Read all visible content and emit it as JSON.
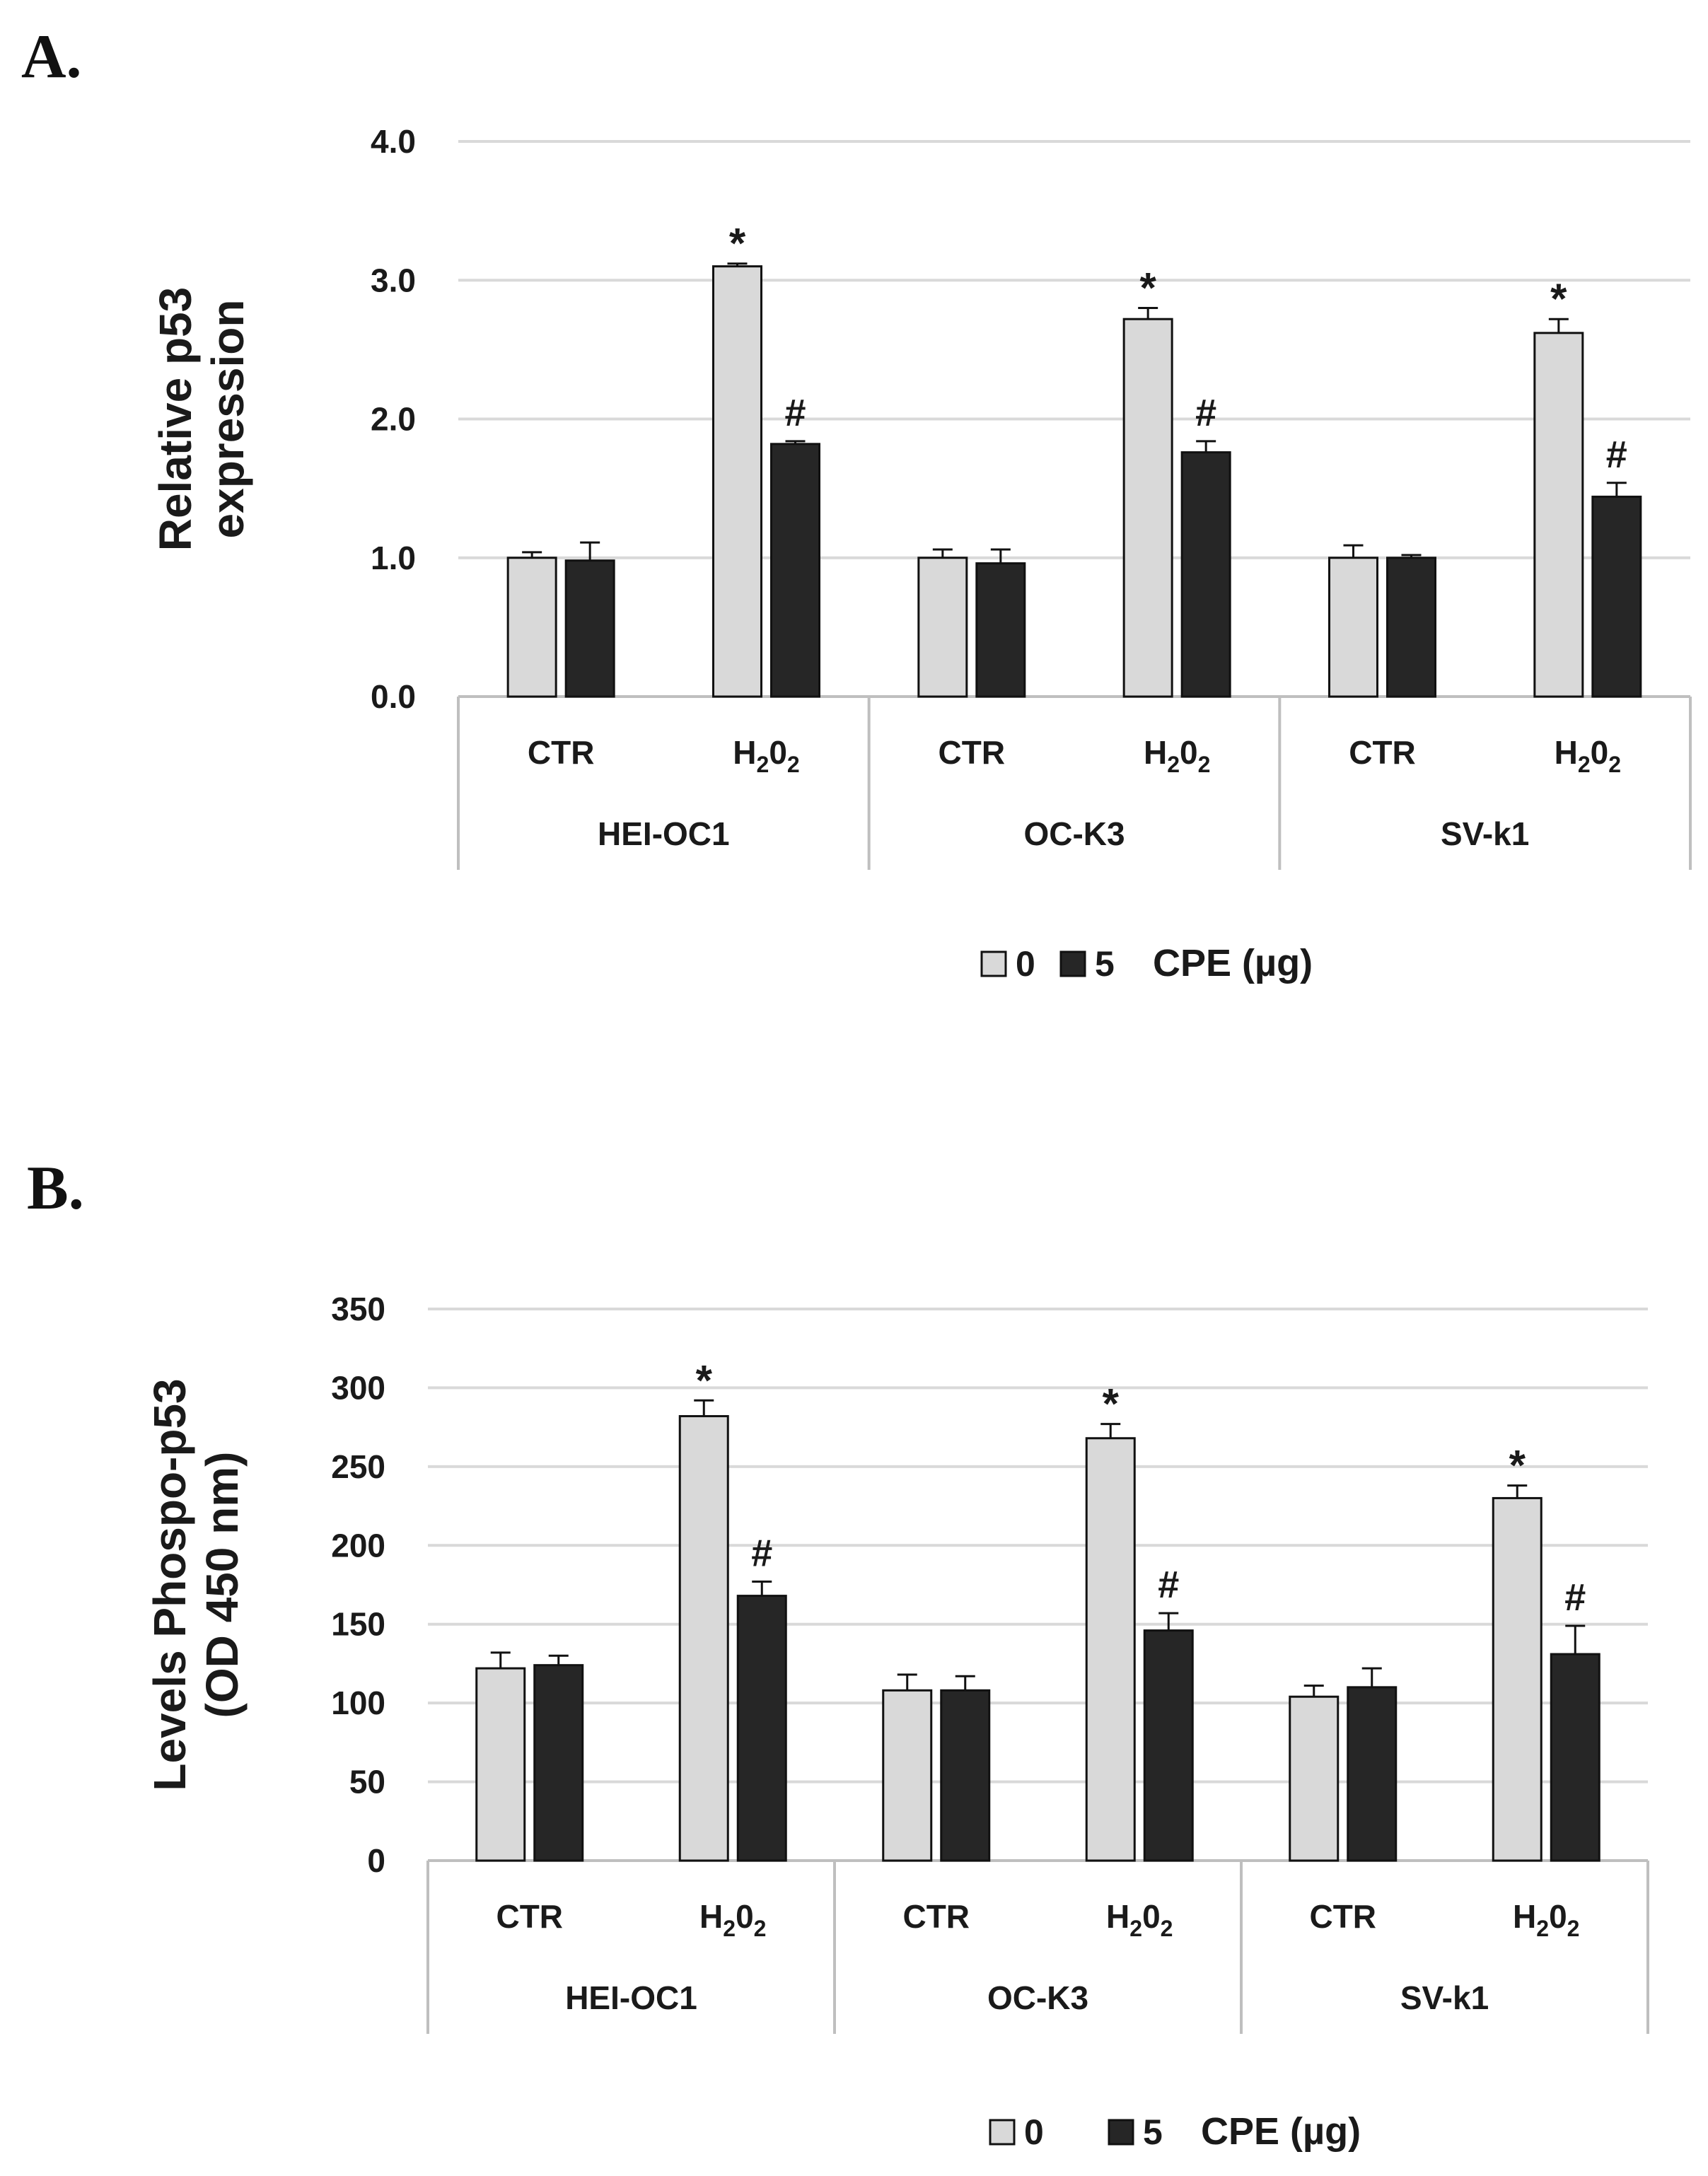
{
  "panels": {
    "a_label": "A.",
    "b_label": "B."
  },
  "colors": {
    "series0": "#d9d9d9",
    "series5": "#262626",
    "grid": "#d9d9d9",
    "axis": "#bfbfbf",
    "text": "#1a1a1a"
  },
  "chart_data": [
    {
      "type": "bar",
      "id": "A",
      "title": "",
      "ylabel_lines": [
        "Relative  p53",
        "expression"
      ],
      "xlabel": "",
      "ylim": [
        0,
        4
      ],
      "yticks": [
        "0.0",
        "1.0",
        "2.0",
        "3.0",
        "4.0"
      ],
      "ytick_values": [
        0,
        1,
        2,
        3,
        4
      ],
      "groups": [
        "HEI-OC1",
        "OC-K3",
        "SV-k1"
      ],
      "categories": [
        "CTR",
        "H2O2",
        "CTR",
        "H2O2",
        "CTR",
        "H2O2"
      ],
      "h2o2_label": {
        "base1": "H",
        "sub1": "2",
        "base2": "0",
        "sub2": "2"
      },
      "series": [
        {
          "name": "0",
          "values": [
            1.0,
            3.1,
            1.0,
            2.72,
            1.0,
            2.62
          ],
          "errors": [
            0.04,
            0.02,
            0.06,
            0.08,
            0.09,
            0.1
          ]
        },
        {
          "name": "5",
          "values": [
            0.98,
            1.82,
            0.96,
            1.76,
            1.0,
            1.44
          ],
          "errors": [
            0.13,
            0.02,
            0.1,
            0.08,
            0.02,
            0.1
          ]
        }
      ],
      "annotations": [
        {
          "bar": 1,
          "series": 0,
          "text": "*"
        },
        {
          "bar": 1,
          "series": 1,
          "text": "#"
        },
        {
          "bar": 3,
          "series": 0,
          "text": "*"
        },
        {
          "bar": 3,
          "series": 1,
          "text": "#"
        },
        {
          "bar": 5,
          "series": 0,
          "text": "*"
        },
        {
          "bar": 5,
          "series": 1,
          "text": "#"
        }
      ],
      "legend": {
        "entries": [
          "0",
          "5"
        ],
        "title": "CPE (µg)",
        "placement": "bottom"
      }
    },
    {
      "type": "bar",
      "id": "B",
      "title": "",
      "ylabel_lines": [
        "Levels Phospo-p53",
        "(OD 450 nm)"
      ],
      "xlabel": "",
      "ylim": [
        0,
        350
      ],
      "yticks": [
        "0",
        "50",
        "100",
        "150",
        "200",
        "250",
        "300",
        "350"
      ],
      "ytick_values": [
        0,
        50,
        100,
        150,
        200,
        250,
        300,
        350
      ],
      "groups": [
        "HEI-OC1",
        "OC-K3",
        "SV-k1"
      ],
      "categories": [
        "CTR",
        "H2O2",
        "CTR",
        "H2O2",
        "CTR",
        "H2O2"
      ],
      "h2o2_label": {
        "base1": "H",
        "sub1": "2",
        "base2": "0",
        "sub2": "2"
      },
      "series": [
        {
          "name": "0",
          "values": [
            122,
            282,
            108,
            268,
            104,
            230
          ],
          "errors": [
            10,
            10,
            10,
            9,
            7,
            8
          ]
        },
        {
          "name": "5",
          "values": [
            124,
            168,
            108,
            146,
            110,
            131
          ],
          "errors": [
            6,
            9,
            9,
            11,
            12,
            18
          ]
        }
      ],
      "annotations": [
        {
          "bar": 1,
          "series": 0,
          "text": "*"
        },
        {
          "bar": 1,
          "series": 1,
          "text": "#"
        },
        {
          "bar": 3,
          "series": 0,
          "text": "*"
        },
        {
          "bar": 3,
          "series": 1,
          "text": "#"
        },
        {
          "bar": 5,
          "series": 0,
          "text": "*"
        },
        {
          "bar": 5,
          "series": 1,
          "text": "#"
        }
      ],
      "legend": {
        "entries": [
          "0",
          "5"
        ],
        "title": "CPE (µg)",
        "placement": "bottom"
      }
    }
  ]
}
